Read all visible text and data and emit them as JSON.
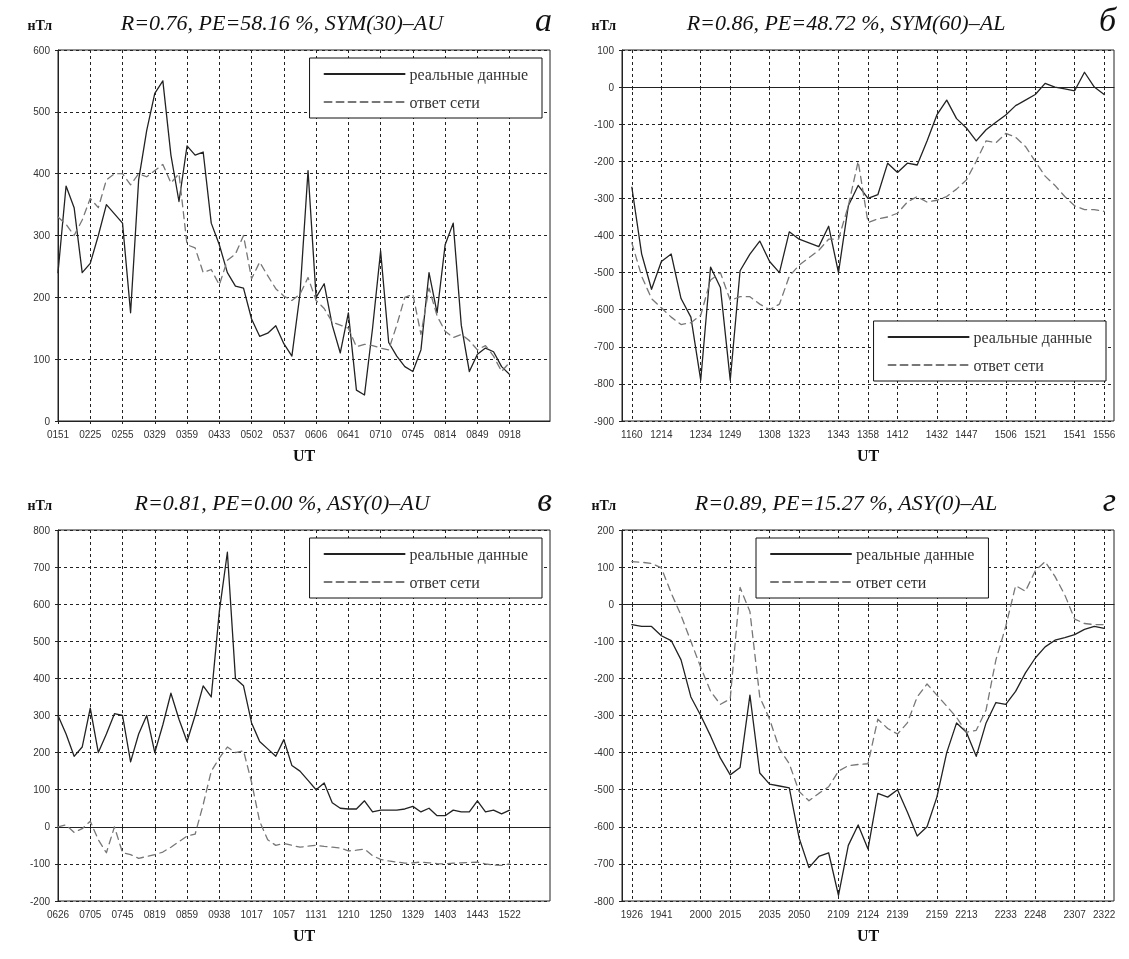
{
  "chart_data": [
    {
      "type": "line",
      "title": "R=0.76, PE=58.16 %, SYM(30)–AU",
      "xlabel": "UT",
      "ylabel": "нТл",
      "annotations": [
        "а"
      ],
      "categories": [
        "0151",
        null,
        null,
        null,
        "0225",
        null,
        null,
        null,
        "0255",
        null,
        null,
        null,
        "0329",
        null,
        null,
        null,
        "0359",
        null,
        null,
        null,
        "0433",
        null,
        null,
        null,
        "0502",
        null,
        null,
        null,
        "0537",
        null,
        null,
        null,
        "0606",
        null,
        null,
        null,
        "0641",
        null,
        null,
        null,
        "0710",
        null,
        null,
        null,
        "0745",
        null,
        null,
        null,
        "0814",
        null,
        null,
        null,
        "0849",
        null,
        null,
        null,
        "0918",
        null,
        null,
        null,
        null,
        null
      ],
      "ylim": [
        0,
        600
      ],
      "yticks": [
        0,
        100,
        200,
        300,
        400,
        500,
        600
      ],
      "grid": true,
      "legend": "top right",
      "series": [
        {
          "name": "реальные данные",
          "color": "#222222",
          "line_style": "solid",
          "values": [
            240,
            380,
            345,
            240,
            255,
            300,
            350,
            335,
            320,
            175,
            390,
            470,
            530,
            550,
            430,
            355,
            445,
            430,
            435,
            320,
            285,
            240,
            218,
            215,
            165,
            137,
            142,
            154,
            125,
            105,
            205,
            405,
            200,
            222,
            155,
            110,
            175,
            50,
            42,
            150,
            275,
            127,
            105,
            88,
            80,
            115,
            240,
            175,
            285,
            320,
            155,
            80,
            108,
            118,
            112,
            88,
            75,
            null,
            null,
            null,
            null,
            null
          ]
        },
        {
          "name": "ответ сети",
          "color": "#777777",
          "line_style": "dashed",
          "values": [
            330,
            318,
            300,
            325,
            360,
            345,
            390,
            400,
            400,
            382,
            400,
            395,
            405,
            415,
            385,
            400,
            285,
            280,
            240,
            245,
            220,
            260,
            270,
            300,
            230,
            257,
            235,
            214,
            202,
            195,
            205,
            232,
            195,
            182,
            160,
            155,
            150,
            120,
            124,
            122,
            118,
            115,
            155,
            200,
            205,
            140,
            215,
            170,
            145,
            135,
            140,
            130,
            115,
            122,
            105,
            80,
            95,
            null,
            null,
            null,
            null,
            null
          ]
        }
      ]
    },
    {
      "type": "line",
      "title": "R=0.86, PE=48.72 %, SYM(60)–AL",
      "xlabel": "UT",
      "ylabel": "нТл",
      "annotations": [
        "б"
      ],
      "categories": [
        null,
        "1160",
        null,
        null,
        "1214",
        null,
        null,
        null,
        "1234",
        null,
        null,
        "1249",
        null,
        null,
        null,
        "1308",
        null,
        null,
        "1323",
        null,
        null,
        null,
        "1343",
        null,
        null,
        "1358",
        null,
        null,
        "1412",
        null,
        null,
        null,
        "1432",
        null,
        null,
        "1447",
        null,
        null,
        null,
        "1506",
        null,
        null,
        "1521",
        null,
        null,
        null,
        "1541",
        null,
        null,
        "1556",
        null
      ],
      "ylim": [
        -900,
        100
      ],
      "yticks": [
        -900,
        -800,
        -700,
        -600,
        -500,
        -400,
        -300,
        -200,
        -100,
        0,
        100
      ],
      "grid": true,
      "legend": "bottom right",
      "series": [
        {
          "name": "реальные данные",
          "color": "#222222",
          "line_style": "solid",
          "values": [
            null,
            -270,
            -450,
            -545,
            -470,
            -450,
            -570,
            -620,
            -790,
            -485,
            -540,
            -790,
            -495,
            -450,
            -415,
            -470,
            -500,
            -390,
            -410,
            -420,
            -430,
            -375,
            -500,
            -320,
            -265,
            -300,
            -290,
            -205,
            -230,
            -205,
            -210,
            -145,
            -75,
            -35,
            -85,
            -110,
            -145,
            -115,
            -95,
            -75,
            -50,
            -35,
            -20,
            10,
            0,
            -5,
            -10,
            40,
            0,
            -20,
            null
          ]
        },
        {
          "name": "ответ сети",
          "color": "#777777",
          "line_style": "dashed",
          "values": [
            null,
            -420,
            -510,
            -570,
            -595,
            -620,
            -640,
            -635,
            -615,
            -520,
            -500,
            -575,
            -565,
            -565,
            -585,
            -600,
            -585,
            -510,
            -480,
            -460,
            -440,
            -410,
            -410,
            -320,
            -200,
            -365,
            -355,
            -350,
            -340,
            -310,
            -295,
            -310,
            -305,
            -295,
            -275,
            -250,
            -200,
            -145,
            -150,
            -125,
            -135,
            -160,
            -200,
            -240,
            -265,
            -295,
            -320,
            -330,
            -330,
            -335,
            null
          ]
        }
      ]
    },
    {
      "type": "line",
      "title": "R=0.81, PE=0.00 %, ASY(0)–AU",
      "xlabel": "UT",
      "ylabel": "нТл",
      "annotations": [
        "в"
      ],
      "categories": [
        "0626",
        null,
        null,
        null,
        "0705",
        null,
        null,
        null,
        "0745",
        null,
        null,
        null,
        "0819",
        null,
        null,
        null,
        "0859",
        null,
        null,
        null,
        "0938",
        null,
        null,
        null,
        "1017",
        null,
        null,
        null,
        "1057",
        null,
        null,
        null,
        "1131",
        null,
        null,
        null,
        "1210",
        null,
        null,
        null,
        "1250",
        null,
        null,
        null,
        "1329",
        null,
        null,
        null,
        "1403",
        null,
        null,
        null,
        "1443",
        null,
        null,
        null,
        "1522",
        null,
        null,
        null,
        null,
        null
      ],
      "ylim": [
        -200,
        800
      ],
      "yticks": [
        -200,
        -100,
        0,
        100,
        200,
        300,
        400,
        500,
        600,
        700,
        800
      ],
      "grid": true,
      "legend": "top right",
      "series": [
        {
          "name": "реальные данные",
          "color": "#222222",
          "line_style": "solid",
          "values": [
            300,
            250,
            190,
            215,
            320,
            200,
            250,
            305,
            300,
            175,
            250,
            300,
            200,
            275,
            360,
            290,
            230,
            300,
            380,
            350,
            580,
            740,
            400,
            380,
            280,
            230,
            210,
            190,
            235,
            165,
            150,
            125,
            100,
            118,
            65,
            50,
            48,
            48,
            70,
            40,
            45,
            45,
            45,
            48,
            55,
            40,
            50,
            30,
            30,
            45,
            40,
            40,
            70,
            40,
            45,
            35,
            45,
            null,
            null,
            null,
            null,
            null
          ]
        },
        {
          "name": "ответ сети",
          "color": "#777777",
          "line_style": "dashed",
          "values": [
            0,
            5,
            -15,
            -5,
            15,
            -35,
            -70,
            0,
            -70,
            -75,
            -85,
            -80,
            -75,
            -68,
            -55,
            -40,
            -25,
            -20,
            60,
            150,
            185,
            215,
            200,
            205,
            120,
            15,
            -35,
            -50,
            -45,
            -50,
            -55,
            -52,
            -50,
            -53,
            -55,
            -57,
            -65,
            -63,
            -60,
            -78,
            -88,
            -92,
            -95,
            -98,
            -97,
            -95,
            -97,
            -99,
            -100,
            -98,
            -97,
            -96,
            -95,
            -100,
            -103,
            -104,
            -100,
            null,
            null,
            null,
            null,
            null
          ]
        }
      ]
    },
    {
      "type": "line",
      "title": "R=0.89, PE=15.27 %, ASY(0)–AL",
      "xlabel": "UT",
      "ylabel": "нТл",
      "annotations": [
        "г"
      ],
      "categories": [
        null,
        "1926",
        null,
        null,
        "1941",
        null,
        null,
        null,
        "2000",
        null,
        null,
        "2015",
        null,
        null,
        null,
        "2035",
        null,
        null,
        "2050",
        null,
        null,
        null,
        "2109",
        null,
        null,
        "2124",
        null,
        null,
        "2139",
        null,
        null,
        null,
        "2159",
        null,
        null,
        "2213",
        null,
        null,
        null,
        "2233",
        null,
        null,
        "2248",
        null,
        null,
        null,
        "2307",
        null,
        null,
        "2322",
        null
      ],
      "ylim": [
        -800,
        200
      ],
      "yticks": [
        -800,
        -700,
        -600,
        -500,
        -400,
        -300,
        -200,
        -100,
        0,
        100,
        200
      ],
      "grid": true,
      "legend": "top",
      "series": [
        {
          "name": "реальные данные",
          "color": "#222222",
          "line_style": "solid",
          "values": [
            null,
            -55,
            -60,
            -60,
            -85,
            -98,
            -150,
            -250,
            -300,
            -355,
            -415,
            -460,
            -440,
            -245,
            -455,
            -485,
            -490,
            -495,
            -630,
            -710,
            -680,
            -670,
            -785,
            -650,
            -595,
            -660,
            -510,
            -520,
            -500,
            -560,
            -625,
            -600,
            -520,
            -400,
            -320,
            -345,
            -410,
            -320,
            -265,
            -270,
            -235,
            -185,
            -145,
            -115,
            -97,
            -90,
            -82,
            -68,
            -60,
            -65,
            null
          ]
        },
        {
          "name": "ответ сети",
          "color": "#777777",
          "line_style": "dashed",
          "values": [
            null,
            115,
            113,
            110,
            98,
            30,
            -30,
            -100,
            -170,
            -235,
            -270,
            -255,
            45,
            -20,
            -250,
            -310,
            -390,
            -430,
            -505,
            -530,
            -510,
            -492,
            -450,
            -435,
            -432,
            -430,
            -310,
            -335,
            -350,
            -320,
            -250,
            -215,
            -245,
            -275,
            -305,
            -345,
            -340,
            -285,
            -150,
            -60,
            50,
            35,
            90,
            115,
            75,
            25,
            -40,
            -52,
            -55,
            -55,
            null
          ]
        }
      ]
    }
  ]
}
